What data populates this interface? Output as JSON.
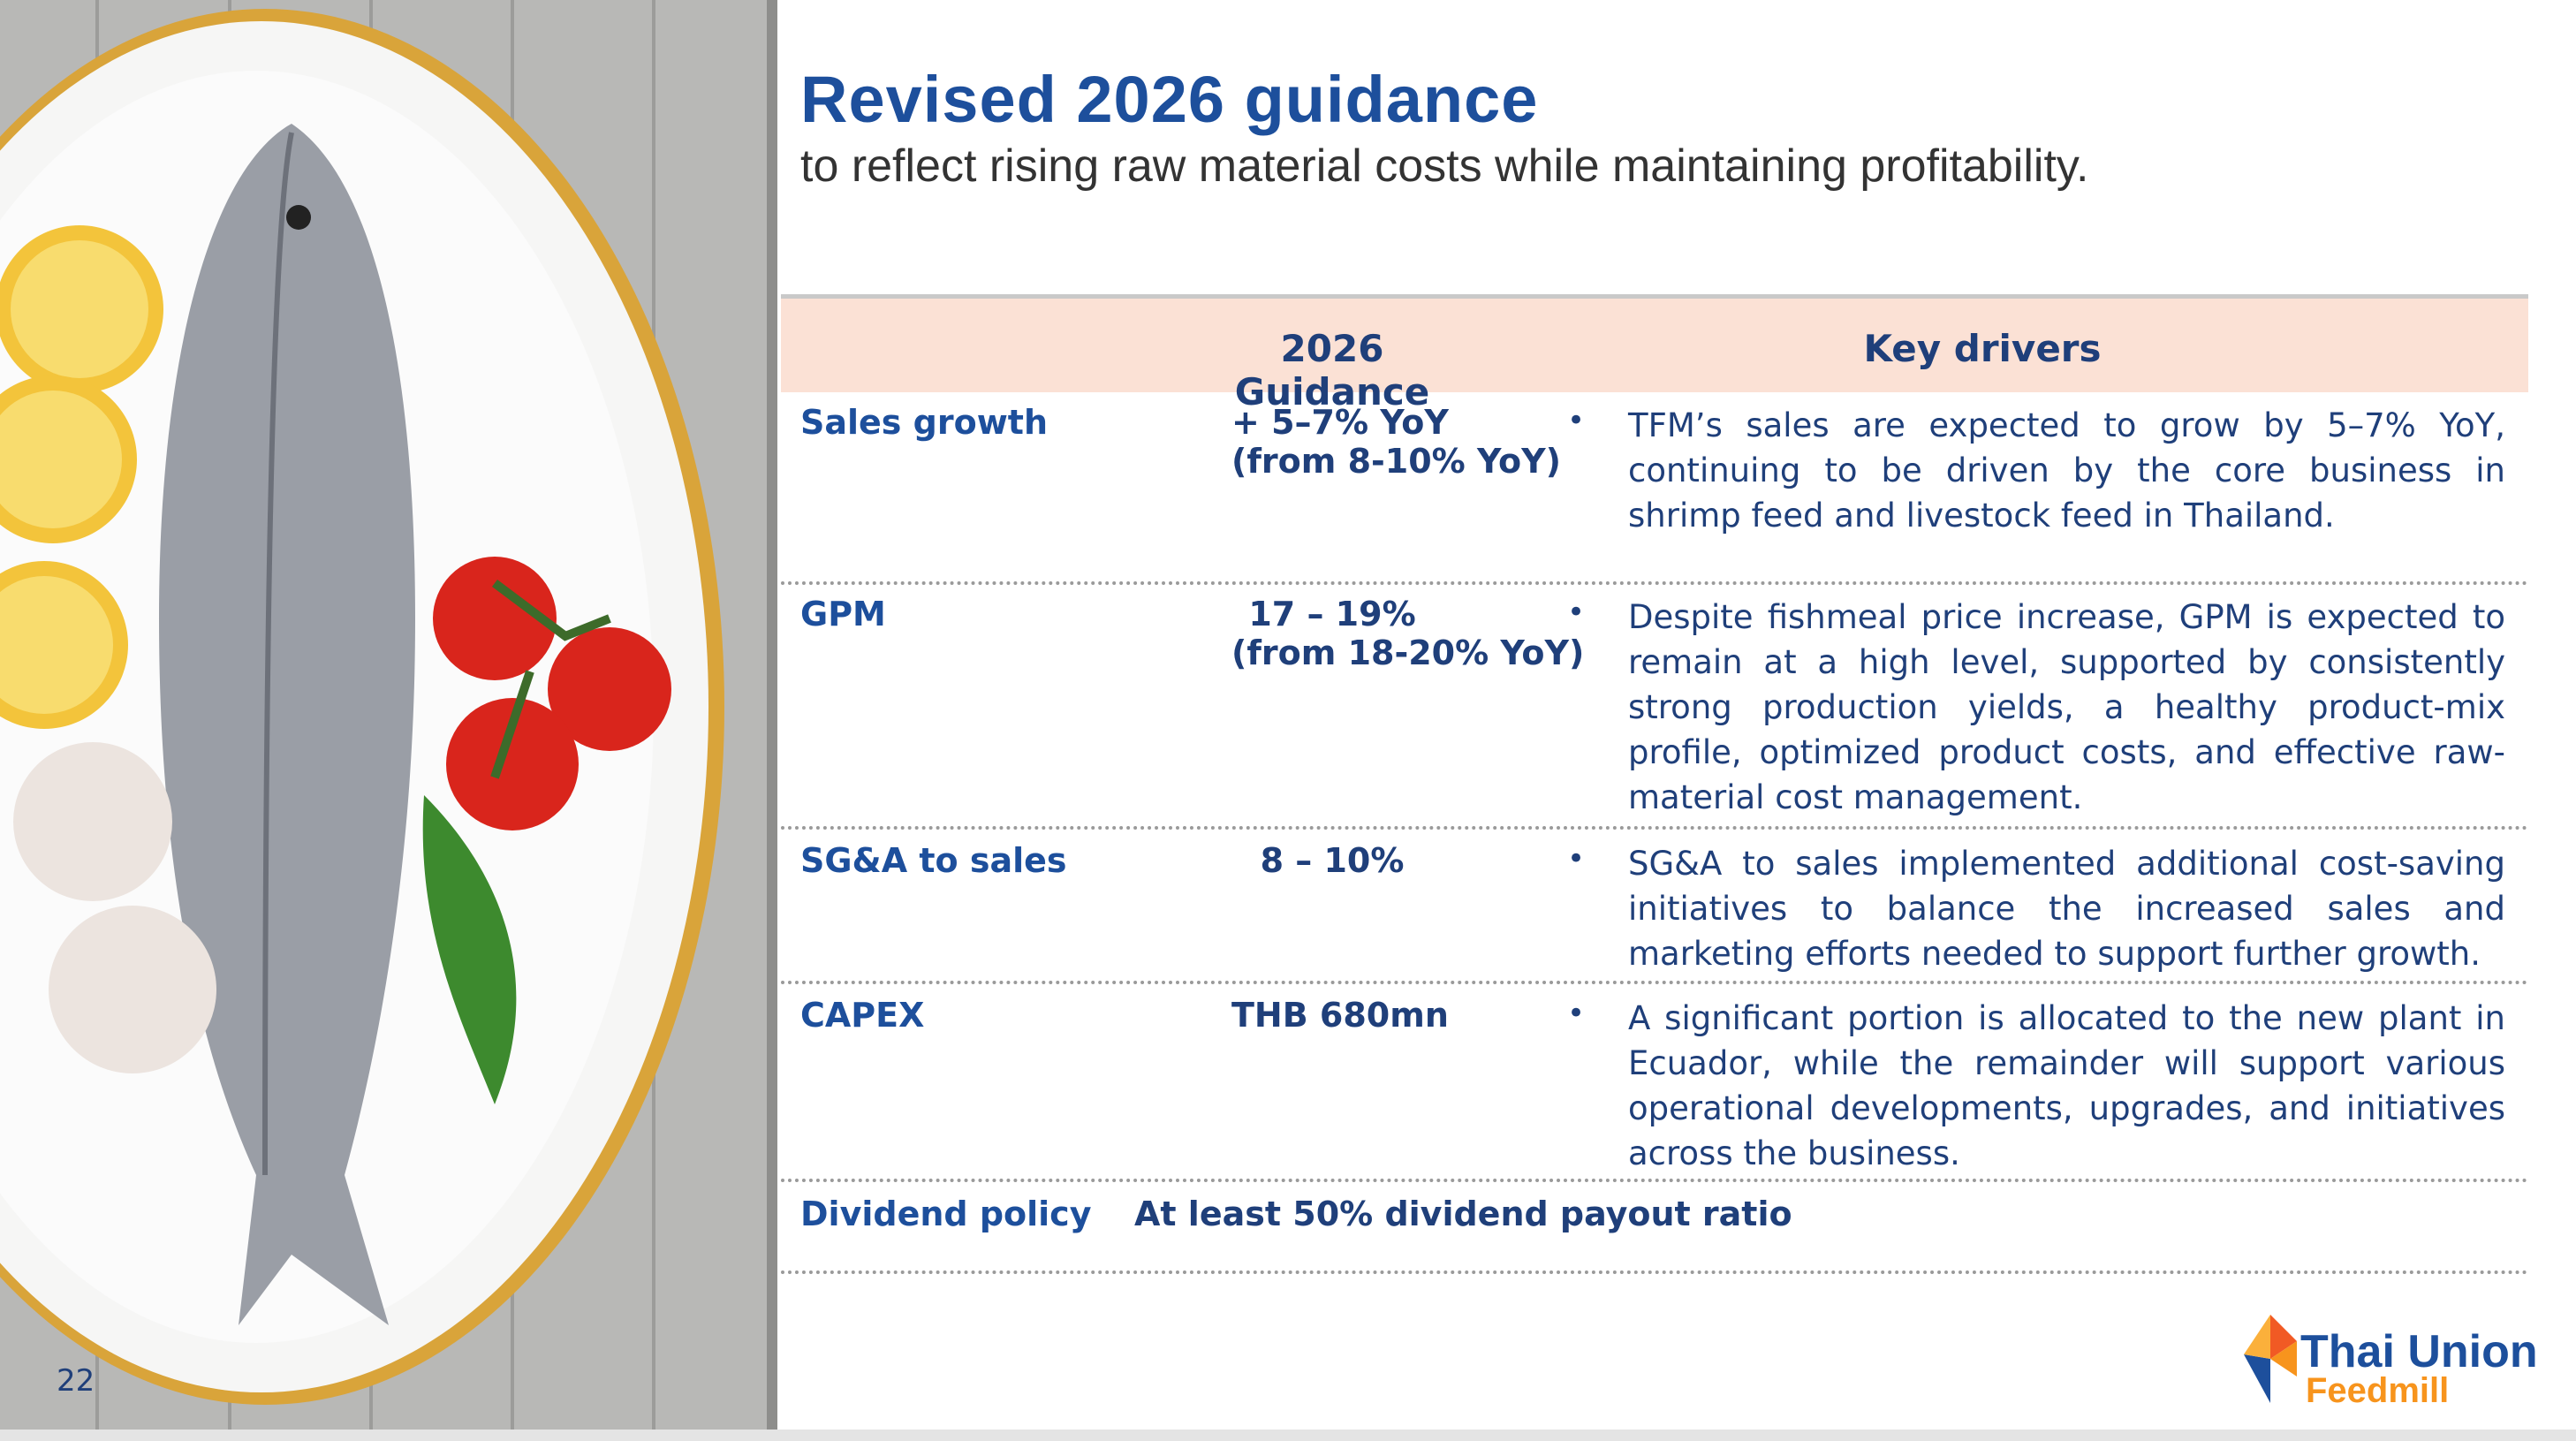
{
  "header": {
    "title": "Revised 2026 guidance",
    "subtitle": "to reflect rising raw material costs while maintaining profitability."
  },
  "table": {
    "columns": [
      "2026 Guidance",
      "Key drivers"
    ],
    "rows": [
      {
        "label": "Sales growth",
        "guidance": [
          "+ 5–7% YoY",
          "(from 8-10% YoY)"
        ],
        "driver": "TFM’s sales are expected to grow by 5–7% YoY, continuing to be driven by the core business in shrimp feed and livestock feed in Thailand."
      },
      {
        "label": "GPM",
        "guidance": [
          "17 – 19%",
          "(from 18-20% YoY)"
        ],
        "driver": "Despite fishmeal price increase, GPM is expected to remain at a high level, supported by consistently strong production yields, a healthy product-mix profile, optimized product costs, and effective raw-material cost management."
      },
      {
        "label": "SG&A to sales",
        "guidance": [
          "8 – 10%"
        ],
        "driver": "SG&A to sales implemented additional cost-saving initiatives to balance the increased sales and marketing efforts needed to support further growth."
      },
      {
        "label": "CAPEX",
        "guidance": [
          "THB 680mn"
        ],
        "driver": "A significant portion is allocated to the new plant in Ecuador, while the remainder will support various operational developments, upgrades, and initiatives across the business."
      }
    ],
    "dividend": {
      "label": "Dividend policy",
      "text": "At least 50% dividend payout ratio"
    }
  },
  "footer": {
    "page_number": "22",
    "logo_line1": "Thai Union",
    "logo_line2": "Feedmill"
  }
}
